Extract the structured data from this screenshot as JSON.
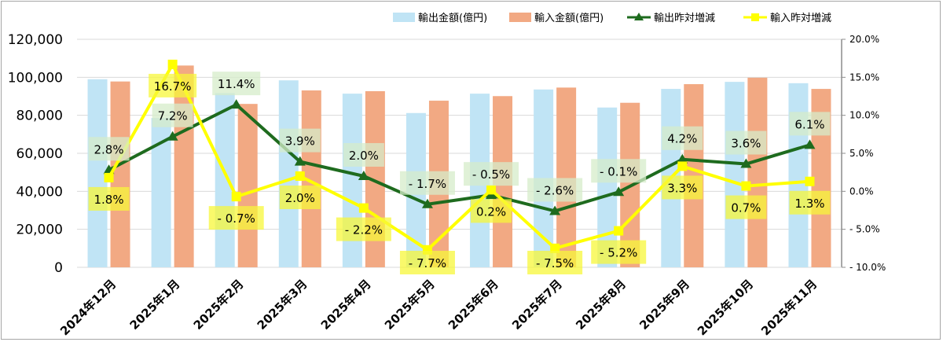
{
  "chart_data": {
    "type": "bar+line",
    "categories": [
      "2024年12月",
      "2025年1月",
      "2025年2月",
      "2025年3月",
      "2025年4月",
      "2025年5月",
      "2025年6月",
      "2025年7月",
      "2025年8月",
      "2025年9月",
      "2025年10月",
      "2025年11月"
    ],
    "series": [
      {
        "name": "輸出金額(億円)",
        "type": "bar",
        "axis": "left",
        "color": "#c0e4f5",
        "values": [
          99000,
          78600,
          91700,
          98400,
          91400,
          81200,
          91400,
          93600,
          84100,
          93900,
          97600,
          96900
        ]
      },
      {
        "name": "輸入金額(億円)",
        "type": "bar",
        "axis": "left",
        "color": "#f2a983",
        "values": [
          97800,
          106200,
          86000,
          93100,
          92700,
          87700,
          90100,
          94600,
          86600,
          96400,
          99800,
          93900
        ]
      },
      {
        "name": "輸出昨対増減",
        "type": "line",
        "axis": "right",
        "color": "#1e6b1e",
        "marker": "triangle",
        "values": [
          2.8,
          7.2,
          11.4,
          3.9,
          2.0,
          -1.7,
          -0.5,
          -2.6,
          -0.1,
          4.2,
          3.6,
          6.1
        ],
        "labels": [
          "2.8%",
          "7.2%",
          "11.4%",
          "3.9%",
          "2.0%",
          "- 1.7%",
          "- 0.5%",
          "- 2.6%",
          "- 0.1%",
          "4.2%",
          "3.6%",
          "6.1%"
        ],
        "label_color": "#d5ecc9"
      },
      {
        "name": "輸入昨対増減",
        "type": "line",
        "axis": "right",
        "color": "#ffff00",
        "marker": "square",
        "values": [
          1.8,
          16.7,
          -0.7,
          2.0,
          -2.2,
          -7.7,
          0.2,
          -7.5,
          -5.2,
          3.3,
          0.7,
          1.3
        ],
        "labels": [
          "1.8%",
          "16.7%",
          "- 0.7%",
          "2.0%",
          "- 2.2%",
          "- 7.7%",
          "0.2%",
          "- 7.5%",
          "- 5.2%",
          "3.3%",
          "0.7%",
          "1.3%"
        ],
        "label_color": "#f7f73a"
      }
    ],
    "left_axis": {
      "range": [
        0,
        120000
      ],
      "ticks": [
        "0",
        "20,000",
        "40,000",
        "60,000",
        "80,000",
        "100,000",
        "120,000"
      ]
    },
    "right_axis": {
      "range": [
        -10,
        20
      ],
      "ticks": [
        "- 10.0%",
        "- 5.0%",
        "0.0%",
        "5.0%",
        "10.0%",
        "15.0%",
        "20.0%"
      ]
    },
    "grid": true,
    "legend": "top-right"
  }
}
